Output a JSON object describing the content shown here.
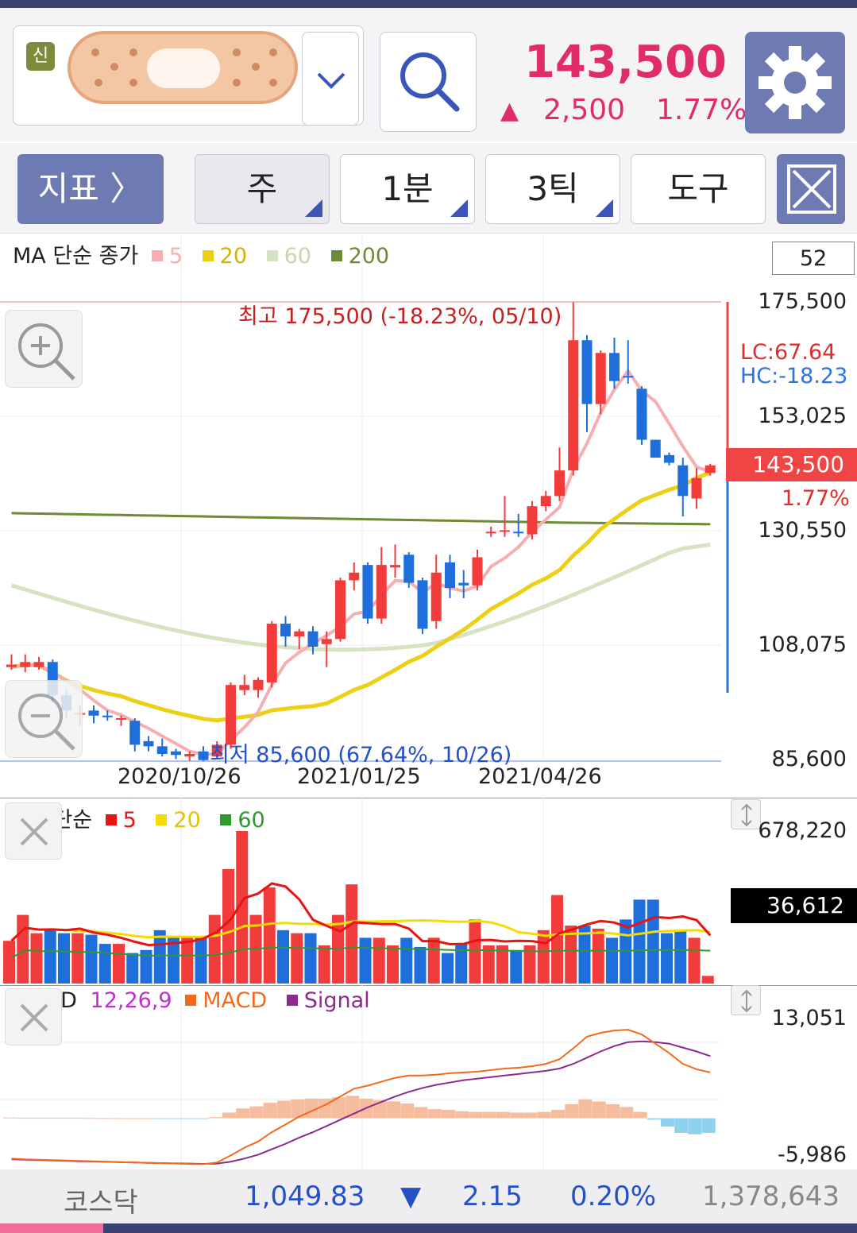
{
  "header": {
    "badge": "신",
    "price": "143,500",
    "change_arrow": "▲",
    "change_value": "2,500",
    "change_percent": "1.77%"
  },
  "toolbar": {
    "indicator_label": "지표 〉",
    "period_label": "주",
    "interval_label": "1분",
    "tick_label": "3틱",
    "tools_label": "도구"
  },
  "main_chart": {
    "legend_title": "MA 단순 종가",
    "ma_periods": [
      "5",
      "20",
      "60",
      "200"
    ],
    "ma_colors": [
      "#f6aeb1",
      "#ecd015",
      "#d6e3c2",
      "#6e8a35"
    ],
    "count_box": "52",
    "high_annotation": "최고 175,500 (-18.23%, 05/10)",
    "low_annotation": "최저 85,600 (67.64%, 10/26)",
    "lc": "LC:67.64",
    "hc": "HC:-18.23",
    "current_price_tag": "143,500",
    "current_pct": "1.77%",
    "y_labels": [
      "175,500",
      "153,025",
      "130,550",
      "108,075",
      "85,600"
    ],
    "x_labels": [
      "2020/10/26",
      "2021/01/25",
      "2021/04/26"
    ]
  },
  "volume_chart": {
    "legend_title": "MA 단순",
    "ma_periods": [
      "5",
      "20",
      "60"
    ],
    "ma_colors": [
      "#e81414",
      "#f5dc00",
      "#2e9a2e"
    ],
    "y_top": "678,220",
    "current_tag": "36,612"
  },
  "macd_chart": {
    "legend_title": "MACD",
    "params": "12,26,9",
    "macd_label": "MACD",
    "signal_label": "Signal",
    "macd_color": "#f26b1d",
    "signal_color": "#8e2a8e",
    "params_color": "#c12fd1",
    "y_top": "13,051",
    "y_bottom": "-5,986"
  },
  "statusbar": {
    "market": "코스닥",
    "index": "1,049.83",
    "arrow": "▼",
    "change": "2.15",
    "percent": "0.20%",
    "volume": "1,378,643"
  },
  "chart_data": {
    "type": "candlestick",
    "candles": [
      {
        "o": 104500,
        "h": 106500,
        "l": 103500,
        "c": 104000,
        "up": true
      },
      {
        "o": 104000,
        "h": 106500,
        "l": 103000,
        "c": 105000,
        "up": true
      },
      {
        "o": 105000,
        "h": 106000,
        "l": 103500,
        "c": 104000,
        "up": true
      },
      {
        "o": 105000,
        "h": 105500,
        "l": 97000,
        "c": 98500,
        "up": false
      },
      {
        "o": 98500,
        "h": 99500,
        "l": 94000,
        "c": 95500,
        "up": false
      },
      {
        "o": 95000,
        "h": 96500,
        "l": 92500,
        "c": 95000,
        "up": true
      },
      {
        "o": 95500,
        "h": 96500,
        "l": 93000,
        "c": 94500,
        "up": false
      },
      {
        "o": 94500,
        "h": 95500,
        "l": 93500,
        "c": 94200,
        "up": false
      },
      {
        "o": 93800,
        "h": 94500,
        "l": 92500,
        "c": 94000,
        "up": true
      },
      {
        "o": 93500,
        "h": 94000,
        "l": 87500,
        "c": 88800,
        "up": false
      },
      {
        "o": 89500,
        "h": 90500,
        "l": 87500,
        "c": 88500,
        "up": false
      },
      {
        "o": 88500,
        "h": 90000,
        "l": 86500,
        "c": 87000,
        "up": false
      },
      {
        "o": 87500,
        "h": 88000,
        "l": 86000,
        "c": 86800,
        "up": false
      },
      {
        "o": 87000,
        "h": 87500,
        "l": 85600,
        "c": 86500,
        "up": true
      },
      {
        "o": 87500,
        "h": 88500,
        "l": 85600,
        "c": 85800,
        "up": false
      },
      {
        "o": 86500,
        "h": 89500,
        "l": 86000,
        "c": 88800,
        "up": true
      },
      {
        "o": 88800,
        "h": 101000,
        "l": 88000,
        "c": 100500,
        "up": true
      },
      {
        "o": 100500,
        "h": 102500,
        "l": 98500,
        "c": 99500,
        "up": true
      },
      {
        "o": 99500,
        "h": 102000,
        "l": 98000,
        "c": 101500,
        "up": true
      },
      {
        "o": 101000,
        "h": 113000,
        "l": 100000,
        "c": 112500,
        "up": true
      },
      {
        "o": 112500,
        "h": 114000,
        "l": 108000,
        "c": 110000,
        "up": false
      },
      {
        "o": 110000,
        "h": 111500,
        "l": 107500,
        "c": 111000,
        "up": true
      },
      {
        "o": 111000,
        "h": 112000,
        "l": 106500,
        "c": 108000,
        "up": false
      },
      {
        "o": 108500,
        "h": 111000,
        "l": 104000,
        "c": 109500,
        "up": true
      },
      {
        "o": 109500,
        "h": 121500,
        "l": 109000,
        "c": 121000,
        "up": true
      },
      {
        "o": 121000,
        "h": 124500,
        "l": 119000,
        "c": 122500,
        "up": true
      },
      {
        "o": 124000,
        "h": 124500,
        "l": 112500,
        "c": 113500,
        "up": false
      },
      {
        "o": 113500,
        "h": 127500,
        "l": 112500,
        "c": 124000,
        "up": true
      },
      {
        "o": 124000,
        "h": 128000,
        "l": 121500,
        "c": 123500,
        "up": true
      },
      {
        "o": 126000,
        "h": 126500,
        "l": 119500,
        "c": 120500,
        "up": false
      },
      {
        "o": 121000,
        "h": 121500,
        "l": 110500,
        "c": 111500,
        "up": false
      },
      {
        "o": 113000,
        "h": 126000,
        "l": 111500,
        "c": 122500,
        "up": true
      },
      {
        "o": 124500,
        "h": 126000,
        "l": 117500,
        "c": 119500,
        "up": false
      },
      {
        "o": 120000,
        "h": 123000,
        "l": 117500,
        "c": 120500,
        "up": false
      },
      {
        "o": 120000,
        "h": 127000,
        "l": 119000,
        "c": 125500,
        "up": true
      },
      {
        "o": 130500,
        "h": 131500,
        "l": 129500,
        "c": 130500,
        "up": true
      },
      {
        "o": 130500,
        "h": 137500,
        "l": 129500,
        "c": 130800,
        "up": true
      },
      {
        "o": 130500,
        "h": 134000,
        "l": 129500,
        "c": 130200,
        "up": false
      },
      {
        "o": 130000,
        "h": 136500,
        "l": 129000,
        "c": 135500,
        "up": true
      },
      {
        "o": 135500,
        "h": 138500,
        "l": 134500,
        "c": 137500,
        "up": true
      },
      {
        "o": 137500,
        "h": 147000,
        "l": 136500,
        "c": 142500,
        "up": true
      },
      {
        "o": 142500,
        "h": 175500,
        "l": 141500,
        "c": 168000,
        "up": true
      },
      {
        "o": 168000,
        "h": 169000,
        "l": 150000,
        "c": 155500,
        "up": false
      },
      {
        "o": 155500,
        "h": 166000,
        "l": 153500,
        "c": 165500,
        "up": true
      },
      {
        "o": 165500,
        "h": 168500,
        "l": 158500,
        "c": 160000,
        "up": false
      },
      {
        "o": 161000,
        "h": 168000,
        "l": 159500,
        "c": 161000,
        "up": false
      },
      {
        "o": 158500,
        "h": 159000,
        "l": 147500,
        "c": 148500,
        "up": false
      },
      {
        "o": 148500,
        "h": 148500,
        "l": 145000,
        "c": 145000,
        "up": false
      },
      {
        "o": 145500,
        "h": 146000,
        "l": 143500,
        "c": 144000,
        "up": false
      },
      {
        "o": 143500,
        "h": 145000,
        "l": 133500,
        "c": 137500,
        "up": false
      },
      {
        "o": 137000,
        "h": 143000,
        "l": 135000,
        "c": 141000,
        "up": true
      },
      {
        "o": 142000,
        "h": 143800,
        "l": 141500,
        "c": 143500,
        "up": true
      }
    ],
    "ylim": [
      85600,
      175500
    ]
  }
}
